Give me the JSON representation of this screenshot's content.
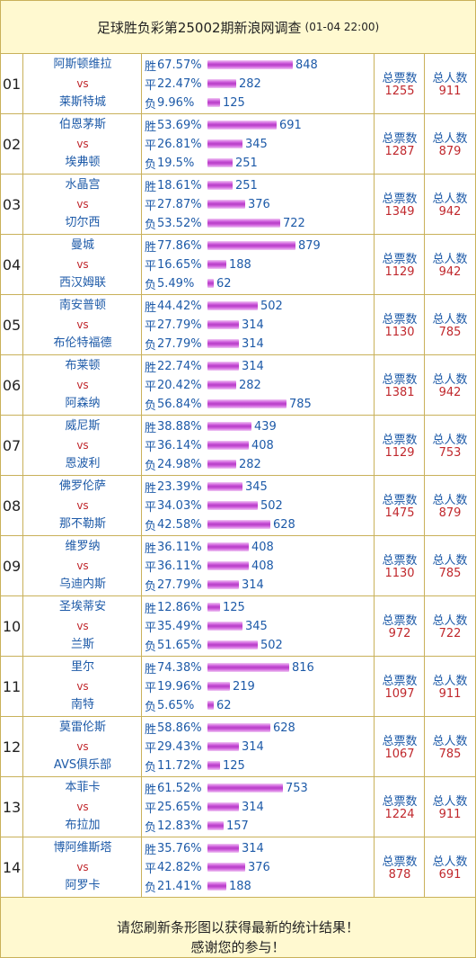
{
  "header": {
    "title": "足球胜负彩第25002期新浪网调查",
    "date": "(01-04 22:00)"
  },
  "labels": {
    "win": "胜",
    "draw": "平",
    "loss": "负",
    "vs": "vs",
    "votes": "总票数",
    "people": "总人数"
  },
  "colors": {
    "border": "#c9b15a",
    "header_bg": "#fff9d0",
    "team": "#1d5aa8",
    "accent_red": "#c0282d",
    "bar": "#c54fd3"
  },
  "matches": [
    {
      "no": "01",
      "home": "阿斯顿维拉",
      "away": "莱斯特城",
      "win_pct": "67.57%",
      "win": 848,
      "draw_pct": "22.47%",
      "draw": 282,
      "loss_pct": "9.96%",
      "loss": 125,
      "votes": "1255",
      "people": "911"
    },
    {
      "no": "02",
      "home": "伯恩茅斯",
      "away": "埃弗顿",
      "win_pct": "53.69%",
      "win": 691,
      "draw_pct": "26.81%",
      "draw": 345,
      "loss_pct": "19.5%",
      "loss": 251,
      "votes": "1287",
      "people": "879"
    },
    {
      "no": "03",
      "home": "水晶宫",
      "away": "切尔西",
      "win_pct": "18.61%",
      "win": 251,
      "draw_pct": "27.87%",
      "draw": 376,
      "loss_pct": "53.52%",
      "loss": 722,
      "votes": "1349",
      "people": "942"
    },
    {
      "no": "04",
      "home": "曼城",
      "away": "西汉姆联",
      "win_pct": "77.86%",
      "win": 879,
      "draw_pct": "16.65%",
      "draw": 188,
      "loss_pct": "5.49%",
      "loss": 62,
      "votes": "1129",
      "people": "942"
    },
    {
      "no": "05",
      "home": "南安普顿",
      "away": "布伦特福德",
      "win_pct": "44.42%",
      "win": 502,
      "draw_pct": "27.79%",
      "draw": 314,
      "loss_pct": "27.79%",
      "loss": 314,
      "votes": "1130",
      "people": "785"
    },
    {
      "no": "06",
      "home": "布莱顿",
      "away": "阿森纳",
      "win_pct": "22.74%",
      "win": 314,
      "draw_pct": "20.42%",
      "draw": 282,
      "loss_pct": "56.84%",
      "loss": 785,
      "votes": "1381",
      "people": "942"
    },
    {
      "no": "07",
      "home": "威尼斯",
      "away": "恩波利",
      "win_pct": "38.88%",
      "win": 439,
      "draw_pct": "36.14%",
      "draw": 408,
      "loss_pct": "24.98%",
      "loss": 282,
      "votes": "1129",
      "people": "753"
    },
    {
      "no": "08",
      "home": "佛罗伦萨",
      "away": "那不勒斯",
      "win_pct": "23.39%",
      "win": 345,
      "draw_pct": "34.03%",
      "draw": 502,
      "loss_pct": "42.58%",
      "loss": 628,
      "votes": "1475",
      "people": "879"
    },
    {
      "no": "09",
      "home": "维罗纳",
      "away": "乌迪内斯",
      "win_pct": "36.11%",
      "win": 408,
      "draw_pct": "36.11%",
      "draw": 408,
      "loss_pct": "27.79%",
      "loss": 314,
      "votes": "1130",
      "people": "785"
    },
    {
      "no": "10",
      "home": "圣埃蒂安",
      "away": "兰斯",
      "win_pct": "12.86%",
      "win": 125,
      "draw_pct": "35.49%",
      "draw": 345,
      "loss_pct": "51.65%",
      "loss": 502,
      "votes": "972",
      "people": "722"
    },
    {
      "no": "11",
      "home": "里尔",
      "away": "南特",
      "win_pct": "74.38%",
      "win": 816,
      "draw_pct": "19.96%",
      "draw": 219,
      "loss_pct": "5.65%",
      "loss": 62,
      "votes": "1097",
      "people": "911"
    },
    {
      "no": "12",
      "home": "莫雷伦斯",
      "away": "AVS俱乐部",
      "win_pct": "58.86%",
      "win": 628,
      "draw_pct": "29.43%",
      "draw": 314,
      "loss_pct": "11.72%",
      "loss": 125,
      "votes": "1067",
      "people": "785"
    },
    {
      "no": "13",
      "home": "本菲卡",
      "away": "布拉加",
      "win_pct": "61.52%",
      "win": 753,
      "draw_pct": "25.65%",
      "draw": 314,
      "loss_pct": "12.83%",
      "loss": 157,
      "votes": "1224",
      "people": "911"
    },
    {
      "no": "14",
      "home": "博阿维斯塔",
      "away": "阿罗卡",
      "win_pct": "35.76%",
      "win": 314,
      "draw_pct": "42.82%",
      "draw": 376,
      "loss_pct": "21.41%",
      "loss": 188,
      "votes": "878",
      "people": "691"
    }
  ],
  "footer": {
    "line1": "请您刷新条形图以获得最新的统计结果！",
    "line2": "感谢您的参与！"
  }
}
